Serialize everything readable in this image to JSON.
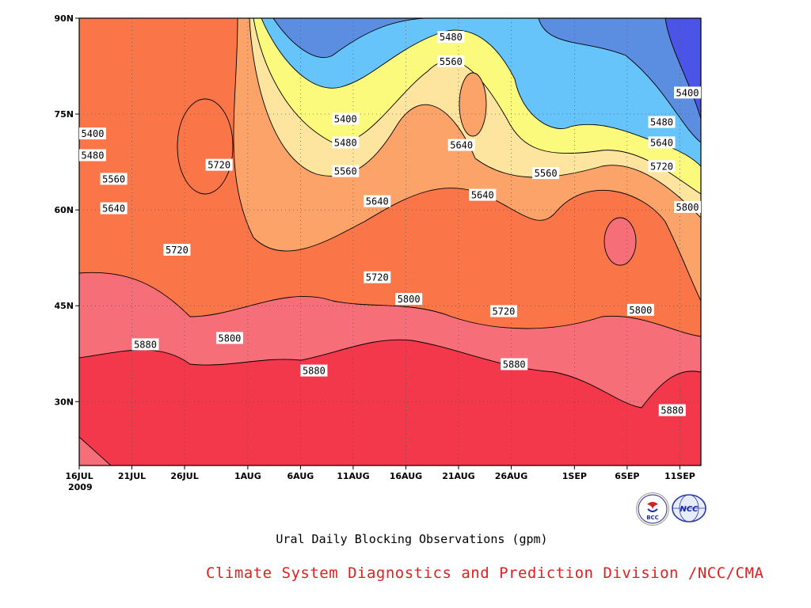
{
  "chart_data": {
    "type": "heatmap",
    "title": "Ural Daily Blocking Observations (gpm)",
    "xlabel": "",
    "ylabel": "",
    "x_tick_labels": [
      "16JUL",
      "21JUL",
      "26JUL",
      "1AUG",
      "6AUG",
      "11AUG",
      "16AUG",
      "21AUG",
      "26AUG",
      "1SEP",
      "6SEP",
      "11SEP"
    ],
    "x_year_label": "2009",
    "y_tick_labels": [
      "90N",
      "75N",
      "60N",
      "45N",
      "30N"
    ],
    "ylim": [
      20,
      90
    ],
    "contour_levels": [
      5400,
      5480,
      5560,
      5640,
      5720,
      5800,
      5880
    ],
    "level_colors": [
      "#4a55e8",
      "#5b8ee0",
      "#66c4fa",
      "#fbfa7d",
      "#fde5a0",
      "#fca36a",
      "#fa7648",
      "#f56e78",
      "#f2384a"
    ],
    "contour_labels": [
      {
        "label": "5480",
        "day": 34,
        "lat": 87
      },
      {
        "label": "5560",
        "day": 34,
        "lat": 83.2
      },
      {
        "label": "5400",
        "day": 59,
        "lat": 78.3
      },
      {
        "label": "5480",
        "day": 54,
        "lat": 73.7
      },
      {
        "label": "5640",
        "day": 54,
        "lat": 70.5
      },
      {
        "label": "5720",
        "day": 54,
        "lat": 66.8
      },
      {
        "label": "5800",
        "day": 58,
        "lat": 60.4
      },
      {
        "label": "5640",
        "day": 35,
        "lat": 70.1
      },
      {
        "label": "5640",
        "day": 37,
        "lat": 62.3
      },
      {
        "label": "5560",
        "day": 43,
        "lat": 65.7
      },
      {
        "label": "5400",
        "day": 0,
        "lat": 71.9
      },
      {
        "label": "5480",
        "day": 0,
        "lat": 68.5
      },
      {
        "label": "5560",
        "day": 2,
        "lat": 64.8
      },
      {
        "label": "5640",
        "day": 2,
        "lat": 60.2
      },
      {
        "label": "5720",
        "day": 12,
        "lat": 67.0
      },
      {
        "label": "5400",
        "day": 24,
        "lat": 74.2
      },
      {
        "label": "5480",
        "day": 24,
        "lat": 70.5
      },
      {
        "label": "5560",
        "day": 24,
        "lat": 66.0
      },
      {
        "label": "5640",
        "day": 27,
        "lat": 61.3
      },
      {
        "label": "5720",
        "day": 8,
        "lat": 53.7
      },
      {
        "label": "5720",
        "day": 27,
        "lat": 49.4
      },
      {
        "label": "5800",
        "day": 30,
        "lat": 46.0
      },
      {
        "label": "5720",
        "day": 39,
        "lat": 44.1
      },
      {
        "label": "5800",
        "day": 52,
        "lat": 44.3
      },
      {
        "label": "5800",
        "day": 13,
        "lat": 39.9
      },
      {
        "label": "5880",
        "day": 5,
        "lat": 38.9
      },
      {
        "label": "5880",
        "day": 21,
        "lat": 34.8
      },
      {
        "label": "5880",
        "day": 40,
        "lat": 35.8
      },
      {
        "label": "5880",
        "day": 55,
        "lat": 28.6
      }
    ]
  },
  "footer": {
    "title": "Ural Daily Blocking Observations (gpm)",
    "credit": "Climate System Diagnostics and Prediction Division /NCC/CMA",
    "logo_left_text": "BCC",
    "logo_right_text": "NCC"
  }
}
